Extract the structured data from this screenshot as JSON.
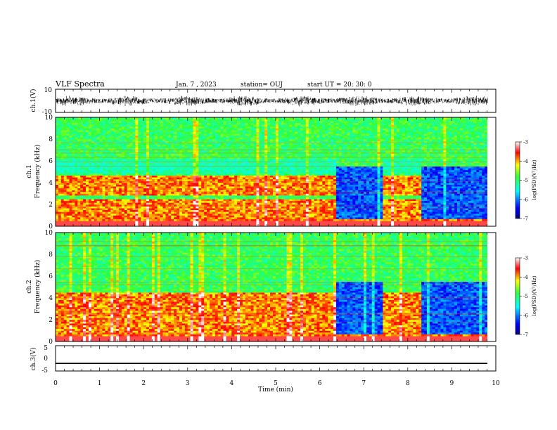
{
  "header": {
    "title": "VLF Spectra",
    "date": "Jan. 7 , 2023",
    "station": "station= OUJ",
    "start": "start UT = 20: 30: 0"
  },
  "chart_data": {
    "type": "heatmap",
    "title": "VLF Spectra",
    "x": {
      "label": "Time (min)",
      "range": [
        0,
        10
      ],
      "ticks": [
        "0",
        "1",
        "2",
        "3",
        "4",
        "5",
        "6",
        "7",
        "8",
        "9",
        "10"
      ]
    },
    "panels": [
      {
        "name": "ch.1(V)",
        "kind": "waveform",
        "ylim": [
          -10,
          10
        ],
        "yticks": [
          "10",
          "-10"
        ]
      },
      {
        "name": "ch.1",
        "kind": "spectrogram",
        "ylabel_name": "ch.1",
        "ylabel_unit": "Frequency (kHz)",
        "ylim": [
          0,
          10
        ],
        "yticks": [
          "0",
          "2",
          "4",
          "6",
          "8",
          "10"
        ],
        "colorbar": {
          "label": "log(PSD)(V²/Hz)",
          "ticks": [
            "-3",
            "-4",
            "-5",
            "-6",
            "-7"
          ],
          "range": [
            -7,
            -3
          ]
        },
        "quiet_intervals_min": [
          [
            6.4,
            7.45
          ],
          [
            8.3,
            9.8
          ]
        ],
        "strong_bands_khz": [
          [
            0.5,
            2.5
          ],
          [
            2.8,
            4.6
          ]
        ]
      },
      {
        "name": "ch.2",
        "kind": "spectrogram",
        "ylabel_name": "ch.2",
        "ylabel_unit": "Frequency (kHz)",
        "ylim": [
          0,
          10
        ],
        "yticks": [
          "0",
          "2",
          "4",
          "6",
          "8",
          "10"
        ],
        "colorbar": {
          "label": "log(PSD)(V²/Hz)",
          "ticks": [
            "-3",
            "-4",
            "-5",
            "-6",
            "-7"
          ],
          "range": [
            -7,
            -3
          ]
        },
        "quiet_intervals_min": [
          [
            6.4,
            7.45
          ],
          [
            8.3,
            9.8
          ]
        ],
        "strong_bands_khz": [
          [
            0.5,
            4.5
          ]
        ]
      },
      {
        "name": "ch.3(V)",
        "kind": "line",
        "ylim": [
          -5,
          5
        ],
        "yticks": [
          "5",
          "0",
          "-5"
        ],
        "constant_value": -2
      }
    ],
    "grid": false
  }
}
